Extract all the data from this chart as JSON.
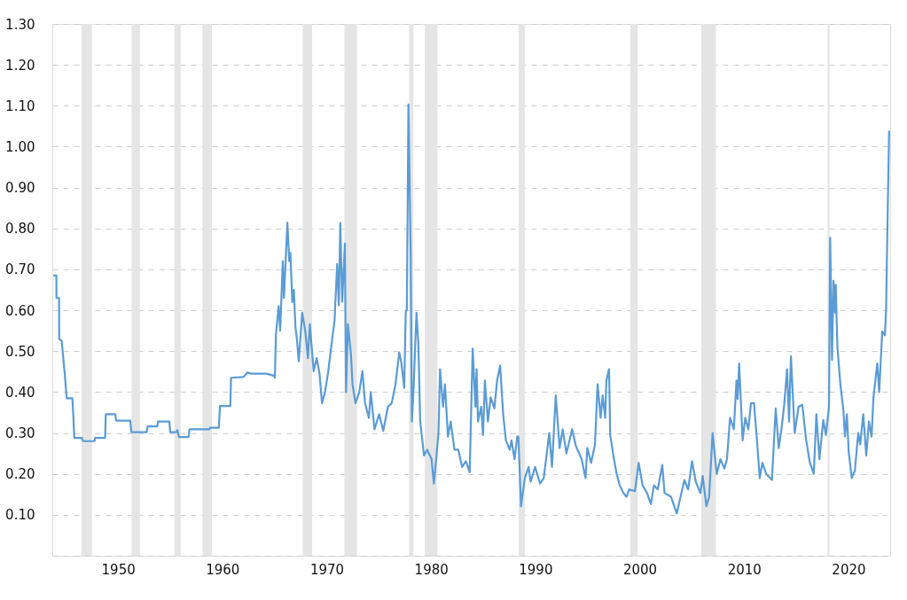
{
  "chart_data": {
    "type": "line",
    "xlim": [
      1943.7,
      2024.0
    ],
    "xticks": [
      1950,
      1960,
      1970,
      1980,
      1990,
      2000,
      2010,
      2020
    ],
    "ylim": [
      0,
      1.3
    ],
    "yticks": [
      {
        "value": 0,
        "label": null
      },
      {
        "value": 0.1,
        "label": "0.10"
      },
      {
        "value": 0.2,
        "label": "0.20"
      },
      {
        "value": 0.3,
        "label": "0.30"
      },
      {
        "value": 0.4,
        "label": "0.40"
      },
      {
        "value": 0.5,
        "label": "0.50"
      },
      {
        "value": 0.6,
        "label": "0.60"
      },
      {
        "value": 0.7,
        "label": "0.70"
      },
      {
        "value": 0.8,
        "label": "0.80"
      },
      {
        "value": 0.9,
        "label": "0.90"
      },
      {
        "value": 1.0,
        "label": "1.00"
      },
      {
        "value": 1.1,
        "label": "1.10"
      },
      {
        "value": 1.2,
        "label": "1.20"
      },
      {
        "value": 1.3,
        "label": "1.30"
      }
    ],
    "grid": "y",
    "bands": [
      {
        "axis": "x",
        "from": 1946.5,
        "to": 1947.5,
        "color": "#e5e5e5"
      },
      {
        "axis": "x",
        "from": 1951.3,
        "to": 1952.1,
        "color": "#e5e5e5"
      },
      {
        "axis": "x",
        "from": 1955.4,
        "to": 1956.0,
        "color": "#e5e5e5"
      },
      {
        "axis": "x",
        "from": 1958.1,
        "to": 1959.0,
        "color": "#e5e5e5"
      },
      {
        "axis": "x",
        "from": 1967.7,
        "to": 1968.6,
        "color": "#e5e5e5"
      },
      {
        "axis": "x",
        "from": 1971.7,
        "to": 1972.9,
        "color": "#e5e5e5"
      },
      {
        "axis": "x",
        "from": 1977.9,
        "to": 1978.3,
        "color": "#e5e5e5"
      },
      {
        "axis": "x",
        "from": 1979.4,
        "to": 1980.6,
        "color": "#e5e5e5"
      },
      {
        "axis": "x",
        "from": 1988.4,
        "to": 1989.0,
        "color": "#e5e5e5"
      },
      {
        "axis": "x",
        "from": 1999.1,
        "to": 1999.8,
        "color": "#e5e5e5"
      },
      {
        "axis": "x",
        "from": 2005.9,
        "to": 2007.3,
        "color": "#e5e5e5"
      },
      {
        "axis": "x",
        "from": 2018.0,
        "to": 2018.2,
        "color": "#e5e5e5"
      }
    ],
    "series": [
      {
        "color": "#5b9bd5",
        "x": [
          1943.8,
          1944.09,
          1944.1,
          1944.35,
          1944.36,
          1944.6,
          1944.89,
          1945.08,
          1945.62,
          1945.7,
          1945.81,
          1946.54,
          1946.64,
          1947.74,
          1947.81,
          1948.76,
          1948.83,
          1949.74,
          1949.82,
          1951.17,
          1951.28,
          1952.74,
          1952.84,
          1953.76,
          1953.83,
          1954.92,
          1955.0,
          1955.6,
          1955.69,
          1955.84,
          1956.75,
          1956.86,
          1958.75,
          1958.83,
          1959.66,
          1959.77,
          1960.76,
          1960.83,
          1962.03,
          1962.4,
          1962.76,
          1964.22,
          1964.95,
          1965.03,
          1965.13,
          1965.39,
          1965.54,
          1965.79,
          1965.9,
          1966.23,
          1966.41,
          1966.52,
          1966.7,
          1966.85,
          1967.0,
          1967.14,
          1967.32,
          1967.65,
          1967.95,
          1968.2,
          1968.38,
          1968.75,
          1969.04,
          1969.3,
          1969.55,
          1969.84,
          1970.13,
          1970.57,
          1970.75,
          1971.0,
          1971.16,
          1971.3,
          1971.48,
          1971.74,
          1971.85,
          1972.03,
          1972.32,
          1972.47,
          1972.76,
          1973.12,
          1973.42,
          1973.67,
          1974.04,
          1974.22,
          1974.58,
          1975.02,
          1975.42,
          1975.86,
          1976.23,
          1976.59,
          1976.95,
          1977.14,
          1977.43,
          1977.57,
          1977.68,
          1977.83,
          1978.05,
          1978.16,
          1978.34,
          1978.6,
          1978.78,
          1978.96,
          1979.32,
          1979.62,
          1980.05,
          1980.27,
          1980.49,
          1980.71,
          1980.86,
          1981.15,
          1981.33,
          1981.62,
          1981.88,
          1982.24,
          1982.61,
          1982.97,
          1983.34,
          1983.7,
          1983.99,
          1984.25,
          1984.36,
          1984.5,
          1984.8,
          1984.98,
          1985.16,
          1985.45,
          1985.71,
          1986.07,
          1986.33,
          1986.62,
          1986.91,
          1987.17,
          1987.53,
          1987.71,
          1988.0,
          1988.26,
          1988.37,
          1988.62,
          1988.99,
          1989.35,
          1989.54,
          1989.97,
          1990.45,
          1990.8,
          1991.33,
          1991.59,
          1991.95,
          1992.32,
          1992.61,
          1992.97,
          1993.52,
          1993.88,
          1994.43,
          1994.8,
          1994.98,
          1995.34,
          1995.71,
          1995.96,
          1996.25,
          1996.44,
          1996.69,
          1996.8,
          1997.06,
          1997.17,
          1997.53,
          1997.79,
          1998.08,
          1998.44,
          1998.73,
          1998.99,
          1999.54,
          1999.9,
          2000.27,
          2000.7,
          2001.07,
          2001.36,
          2001.72,
          2002.16,
          2002.38,
          2003.0,
          2003.55,
          2003.91,
          2004.28,
          2004.64,
          2005.01,
          2005.37,
          2005.81,
          2006.03,
          2006.39,
          2006.65,
          2006.98,
          2007.38,
          2007.74,
          2008.11,
          2008.36,
          2008.65,
          2009.02,
          2009.27,
          2009.38,
          2009.53,
          2009.86,
          2010.11,
          2010.41,
          2010.66,
          2010.95,
          2011.21,
          2011.5,
          2011.75,
          2012.12,
          2012.67,
          2013.03,
          2013.32,
          2013.58,
          2013.83,
          2014.12,
          2014.31,
          2014.49,
          2014.85,
          2015.22,
          2015.58,
          2015.95,
          2016.31,
          2016.68,
          2016.93,
          2017.22,
          2017.59,
          2017.84,
          2018.14,
          2018.25,
          2018.43,
          2018.57,
          2018.72,
          2018.79,
          2018.94,
          2019.23,
          2019.52,
          2019.67,
          2019.85,
          2020.03,
          2020.32,
          2020.62,
          2020.94,
          2021.13,
          2021.42,
          2021.71,
          2021.97,
          2022.22,
          2022.4,
          2022.77,
          2022.95,
          2023.24,
          2023.5,
          2023.61,
          2023.68,
          2023.9
        ],
        "values": [
          0.685,
          0.685,
          0.63,
          0.63,
          0.53,
          0.525,
          0.445,
          0.385,
          0.385,
          0.35,
          0.288,
          0.288,
          0.28,
          0.28,
          0.288,
          0.288,
          0.346,
          0.346,
          0.33,
          0.33,
          0.302,
          0.302,
          0.316,
          0.316,
          0.328,
          0.328,
          0.302,
          0.302,
          0.307,
          0.29,
          0.29,
          0.309,
          0.309,
          0.313,
          0.313,
          0.366,
          0.366,
          0.435,
          0.437,
          0.448,
          0.445,
          0.445,
          0.44,
          0.435,
          0.54,
          0.61,
          0.55,
          0.72,
          0.63,
          0.814,
          0.72,
          0.74,
          0.62,
          0.65,
          0.56,
          0.53,
          0.475,
          0.594,
          0.548,
          0.483,
          0.566,
          0.451,
          0.483,
          0.447,
          0.373,
          0.4,
          0.447,
          0.539,
          0.575,
          0.713,
          0.612,
          0.814,
          0.621,
          0.763,
          0.4,
          0.566,
          0.493,
          0.419,
          0.373,
          0.4,
          0.451,
          0.373,
          0.337,
          0.4,
          0.309,
          0.346,
          0.305,
          0.364,
          0.373,
          0.419,
          0.497,
          0.474,
          0.41,
          0.594,
          0.603,
          1.103,
          0.731,
          0.328,
          0.419,
          0.594,
          0.52,
          0.328,
          0.245,
          0.259,
          0.236,
          0.176,
          0.236,
          0.3,
          0.456,
          0.364,
          0.419,
          0.291,
          0.328,
          0.259,
          0.259,
          0.217,
          0.231,
          0.204,
          0.506,
          0.364,
          0.456,
          0.328,
          0.364,
          0.295,
          0.428,
          0.328,
          0.387,
          0.36,
          0.428,
          0.465,
          0.346,
          0.282,
          0.259,
          0.282,
          0.236,
          0.291,
          0.291,
          0.121,
          0.19,
          0.217,
          0.181,
          0.217,
          0.176,
          0.19,
          0.3,
          0.217,
          0.392,
          0.263,
          0.309,
          0.25,
          0.309,
          0.268,
          0.236,
          0.19,
          0.263,
          0.227,
          0.272,
          0.419,
          0.337,
          0.392,
          0.337,
          0.428,
          0.456,
          0.295,
          0.236,
          0.2,
          0.172,
          0.153,
          0.144,
          0.162,
          0.158,
          0.227,
          0.172,
          0.153,
          0.126,
          0.172,
          0.162,
          0.222,
          0.153,
          0.144,
          0.103,
          0.144,
          0.185,
          0.162,
          0.231,
          0.181,
          0.153,
          0.195,
          0.121,
          0.144,
          0.3,
          0.2,
          0.236,
          0.213,
          0.236,
          0.337,
          0.309,
          0.428,
          0.383,
          0.47,
          0.282,
          0.337,
          0.309,
          0.373,
          0.373,
          0.291,
          0.19,
          0.227,
          0.2,
          0.185,
          0.36,
          0.263,
          0.309,
          0.364,
          0.456,
          0.328,
          0.488,
          0.3,
          0.364,
          0.369,
          0.282,
          0.227,
          0.2,
          0.346,
          0.236,
          0.332,
          0.295,
          0.364,
          0.777,
          0.479,
          0.672,
          0.594,
          0.662,
          0.511,
          0.419,
          0.355,
          0.291,
          0.346,
          0.254,
          0.19,
          0.208,
          0.3,
          0.272,
          0.346,
          0.245,
          0.328,
          0.291,
          0.387,
          0.47,
          0.4,
          0.548,
          0.539,
          0.603,
          0.713,
          1.039
        ]
      }
    ]
  }
}
